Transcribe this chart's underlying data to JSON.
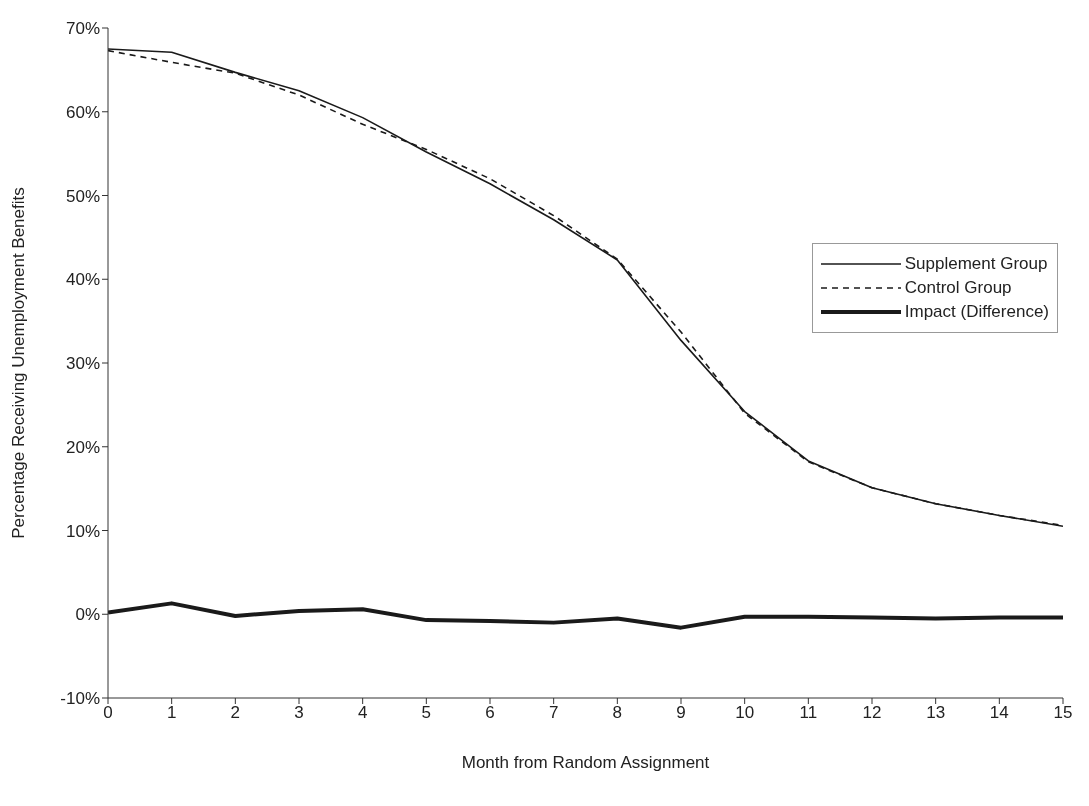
{
  "chart_data": {
    "type": "line",
    "xlabel": "Month from Random Assignment",
    "ylabel": "Percentage Receiving Unemployment Benefits",
    "x": [
      0,
      1,
      2,
      3,
      4,
      5,
      6,
      7,
      8,
      9,
      10,
      11,
      12,
      13,
      14,
      15
    ],
    "series": [
      {
        "name": "Supplement Group",
        "color": "#1a1a1a",
        "line_style": "solid",
        "values": [
          67.5,
          67.1,
          64.7,
          62.5,
          59.3,
          55.2,
          51.4,
          47.1,
          42.3,
          32.7,
          24.2,
          18.3,
          15.1,
          13.2,
          11.8,
          10.5
        ]
      },
      {
        "name": "Control Group",
        "color": "#1a1a1a",
        "line_style": "dashed",
        "values": [
          67.3,
          65.9,
          64.6,
          62.0,
          58.5,
          55.5,
          52.0,
          47.6,
          42.4,
          33.7,
          24.0,
          18.2,
          15.1,
          13.2,
          11.8,
          10.6
        ]
      },
      {
        "name": "Impact (Difference)",
        "color": "#1a1a1a",
        "line_style": "solid",
        "values": [
          0.2,
          1.3,
          -0.2,
          0.4,
          0.6,
          -0.7,
          -0.8,
          -1.0,
          -0.5,
          -1.6,
          -0.3,
          -0.3,
          -0.4,
          -0.5,
          -0.4,
          -0.4
        ]
      }
    ],
    "xlim": [
      0,
      15
    ],
    "xticks": [
      0,
      1,
      2,
      3,
      4,
      5,
      6,
      7,
      8,
      9,
      10,
      11,
      12,
      13,
      14,
      15
    ],
    "ylim": [
      -10,
      70
    ],
    "yticks": [
      {
        "value": -10,
        "label": "-10%"
      },
      {
        "value": 0,
        "label": "0%"
      },
      {
        "value": 10,
        "label": "10%"
      },
      {
        "value": 20,
        "label": "20%"
      },
      {
        "value": 30,
        "label": "30%"
      },
      {
        "value": 40,
        "label": "40%"
      },
      {
        "value": 50,
        "label": "50%"
      },
      {
        "value": 60,
        "label": "60%"
      },
      {
        "value": 70,
        "label": "70%"
      }
    ],
    "grid": false,
    "legend": "right",
    "marker": "none"
  }
}
